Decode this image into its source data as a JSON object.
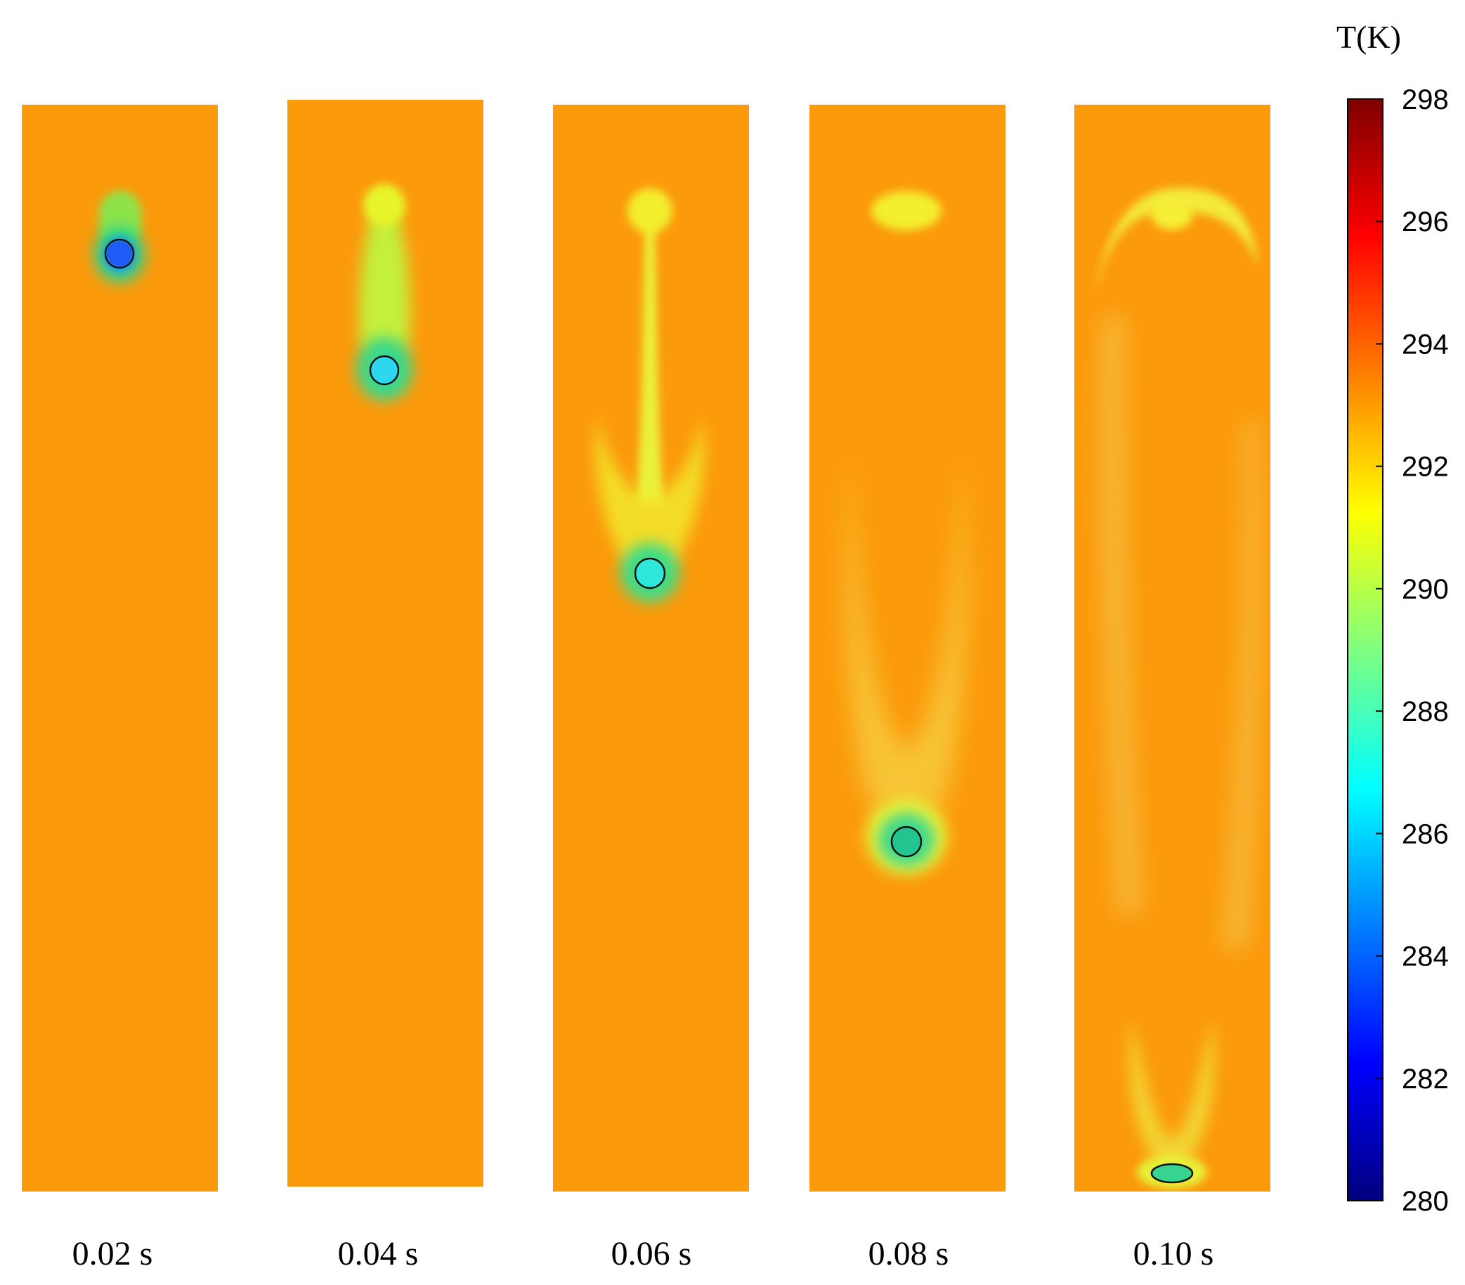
{
  "figure": {
    "colorbar": {
      "title": "T(K)",
      "min": 280,
      "max": 298,
      "ticks": [
        "298",
        "296",
        "294",
        "292",
        "290",
        "288",
        "286",
        "284",
        "282",
        "280"
      ],
      "colormap": [
        "#00007f",
        "#0000ff",
        "#007fff",
        "#00ffff",
        "#7fff7f",
        "#ffff00",
        "#ff7f00",
        "#ff0000",
        "#7f0000"
      ]
    },
    "ambient_color": "#fb9a0b",
    "panels": [
      {
        "label": "0.02 s",
        "droplet_temperature_k": 283.5,
        "droplet_depth_fraction": 0.14
      },
      {
        "label": "0.04 s",
        "droplet_temperature_k": 286.3,
        "droplet_depth_fraction": 0.25
      },
      {
        "label": "0.06 s",
        "droplet_temperature_k": 287.0,
        "droplet_depth_fraction": 0.43
      },
      {
        "label": "0.08 s",
        "droplet_temperature_k": 288.7,
        "droplet_depth_fraction": 0.68
      },
      {
        "label": "0.10 s",
        "droplet_temperature_k": 289.5,
        "droplet_depth_fraction": 0.98
      }
    ]
  }
}
